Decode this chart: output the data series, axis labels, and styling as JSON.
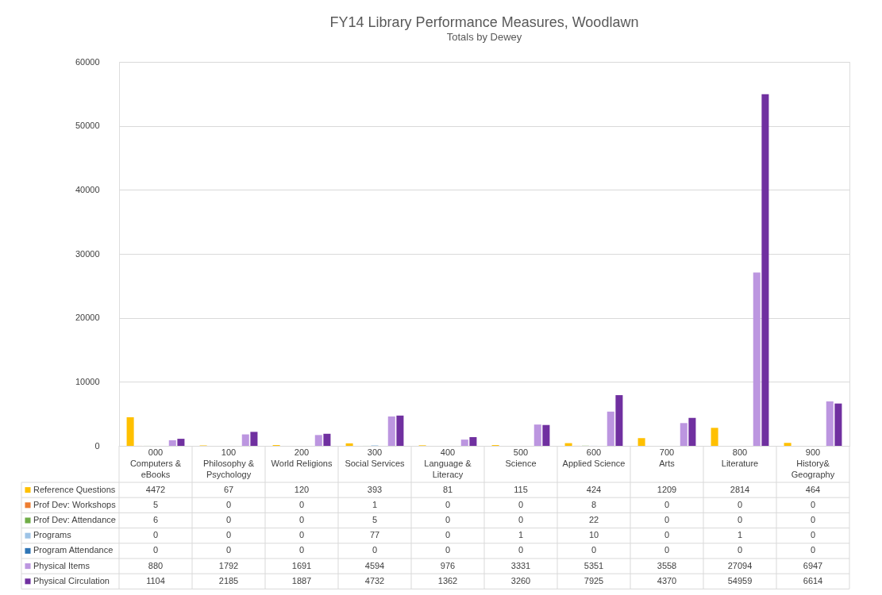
{
  "chart_data": {
    "type": "bar",
    "title": "FY14 Library Performance Measures, Woodlawn",
    "subtitle": "Totals by Dewey",
    "categories": [
      "000 Computers & eBooks",
      "100 Philosophy & Psychology",
      "200 World Religions",
      "300 Social Services",
      "400 Language & Literacy",
      "500 Science",
      "600 Applied Science",
      "700 Arts",
      "800 Literature",
      "900 History& Geography"
    ],
    "series": [
      {
        "name": "Reference Questions",
        "color": "#ffc000",
        "values": [
          4472,
          67,
          120,
          393,
          81,
          115,
          424,
          1209,
          2814,
          464
        ]
      },
      {
        "name": "Prof Dev: Workshops",
        "color": "#ed7d31",
        "values": [
          5,
          0,
          0,
          1,
          0,
          0,
          8,
          0,
          0,
          0
        ]
      },
      {
        "name": "Prof Dev: Attendance",
        "color": "#70ad47",
        "values": [
          6,
          0,
          0,
          5,
          0,
          0,
          22,
          0,
          0,
          0
        ]
      },
      {
        "name": "Programs",
        "color": "#9dc3e6",
        "values": [
          0,
          0,
          0,
          77,
          0,
          1,
          10,
          0,
          1,
          0
        ]
      },
      {
        "name": "Program Attendance",
        "color": "#2e75b6",
        "values": [
          0,
          0,
          0,
          0,
          0,
          0,
          0,
          0,
          0,
          0
        ]
      },
      {
        "name": "Physical Items",
        "color": "#bc96e0",
        "values": [
          880,
          1792,
          1691,
          4594,
          976,
          3331,
          5351,
          3558,
          27094,
          6947
        ]
      },
      {
        "name": "Physical Circulation",
        "color": "#7030a0",
        "values": [
          1104,
          2185,
          1887,
          4732,
          1362,
          3260,
          7925,
          4370,
          54959,
          6614
        ]
      }
    ],
    "ylim": [
      0,
      60000
    ],
    "yticks": [
      0,
      10000,
      20000,
      30000,
      40000,
      50000,
      60000
    ],
    "grid": true,
    "legend": "bottom",
    "data_labels": true
  }
}
